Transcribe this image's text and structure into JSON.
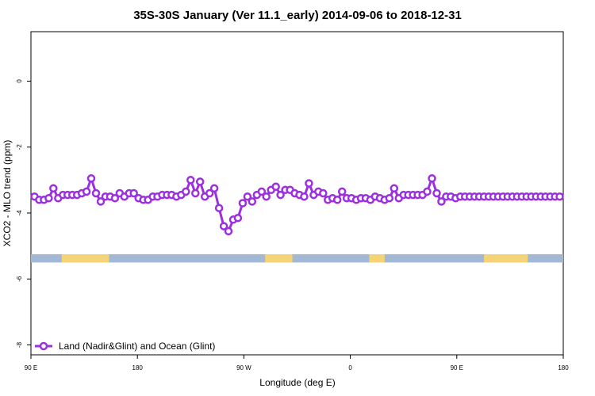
{
  "chart_data": {
    "type": "line",
    "title": "35S-30S January (Ver 11.1_early)   2014-09-06 to 2018-12-31",
    "xlabel": "Longitude (deg E)",
    "ylabel": "XCO2 - MLO trend (ppm)",
    "xlim": [
      90,
      540
    ],
    "ylim": [
      -8.3,
      1.5
    ],
    "x_ticks": [
      {
        "value": 90,
        "label": "90 E"
      },
      {
        "value": 180,
        "label": "180"
      },
      {
        "value": 270,
        "label": "90 W"
      },
      {
        "value": 360,
        "label": "0"
      },
      {
        "value": 450,
        "label": "90 E"
      },
      {
        "value": 540,
        "label": "180"
      }
    ],
    "y_ticks": [
      {
        "value": 0,
        "label": "0"
      },
      {
        "value": -2,
        "label": "-2"
      },
      {
        "value": -4,
        "label": "-4"
      },
      {
        "value": -6,
        "label": "-6"
      },
      {
        "value": -8,
        "label": "-8"
      }
    ],
    "series": [
      {
        "name": "Land (Nadir&Glint) and Ocean (Glint)",
        "color": "#9b30e0",
        "x": [
          93,
          97,
          101,
          105,
          109,
          113,
          117,
          121,
          125,
          129,
          133,
          137,
          141,
          145,
          149,
          153,
          157,
          161,
          165,
          169,
          173,
          177,
          181,
          185,
          189,
          193,
          197,
          201,
          205,
          209,
          213,
          217,
          221,
          225,
          229,
          233,
          237,
          241,
          245,
          249,
          253,
          257,
          261,
          265,
          269,
          273,
          277,
          281,
          285,
          289,
          293,
          297,
          301,
          305,
          309,
          313,
          317,
          321,
          325,
          329,
          333,
          337,
          341,
          345,
          349,
          353,
          357,
          361,
          365,
          369,
          373,
          377,
          381,
          385,
          389,
          393,
          397,
          401,
          405,
          409,
          413,
          417,
          421,
          425,
          429,
          433,
          437,
          441,
          445,
          449,
          453,
          457,
          461,
          465,
          469,
          473,
          477,
          481,
          485,
          489,
          493,
          497,
          501,
          505,
          509,
          513,
          517,
          521,
          525,
          529,
          533,
          537
        ],
        "y": [
          -3.5,
          -3.6,
          -3.6,
          -3.55,
          -3.25,
          -3.55,
          -3.45,
          -3.45,
          -3.45,
          -3.45,
          -3.4,
          -3.35,
          -2.95,
          -3.4,
          -3.65,
          -3.5,
          -3.5,
          -3.55,
          -3.4,
          -3.5,
          -3.4,
          -3.4,
          -3.55,
          -3.6,
          -3.6,
          -3.5,
          -3.5,
          -3.45,
          -3.45,
          -3.45,
          -3.5,
          -3.45,
          -3.35,
          -3.0,
          -3.4,
          -3.05,
          -3.5,
          -3.4,
          -3.25,
          -3.85,
          -4.4,
          -4.55,
          -4.2,
          -4.15,
          -3.7,
          -3.5,
          -3.65,
          -3.45,
          -3.35,
          -3.5,
          -3.3,
          -3.2,
          -3.45,
          -3.3,
          -3.3,
          -3.4,
          -3.45,
          -3.5,
          -3.1,
          -3.45,
          -3.35,
          -3.4,
          -3.6,
          -3.55,
          -3.6,
          -3.35,
          -3.55,
          -3.55,
          -3.6,
          -3.55,
          -3.55,
          -3.6,
          -3.5,
          -3.55,
          -3.6,
          -3.55,
          -3.25,
          -3.55,
          -3.45,
          -3.45,
          -3.45,
          -3.45,
          -3.45,
          -3.35,
          -2.95,
          -3.4,
          -3.65,
          -3.5,
          -3.5,
          -3.55,
          -3.5,
          -3.5,
          -3.5,
          -3.5,
          -3.5,
          -3.5,
          -3.5,
          -3.5,
          -3.5,
          -3.5,
          -3.5,
          -3.5,
          -3.5,
          -3.5,
          -3.5,
          -3.5,
          -3.5,
          -3.5,
          -3.5,
          -3.5,
          -3.5,
          -3.5
        ]
      }
    ],
    "legend": {
      "placement": "bottom-left"
    },
    "grid": false,
    "map_strip": {
      "ocean_color": "#a3b8d4",
      "land_color": "#f5d478",
      "y_range": [
        -5.5,
        -5.25
      ],
      "land_spans": [
        [
          116,
          156
        ],
        [
          288,
          311
        ],
        [
          376,
          389
        ],
        [
          473,
          510
        ]
      ]
    }
  }
}
